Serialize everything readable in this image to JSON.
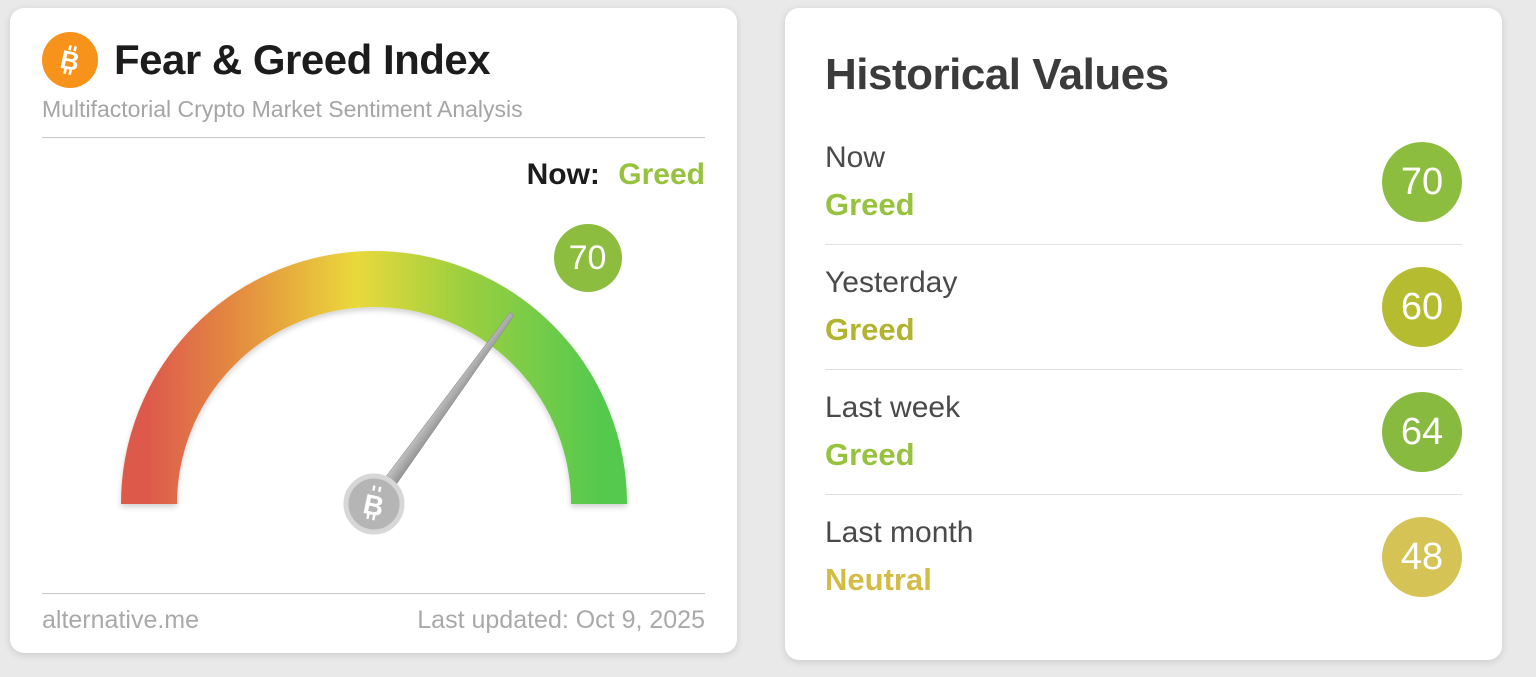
{
  "page": {
    "background": "#e9e9e9"
  },
  "index_card": {
    "title": "Fear & Greed Index",
    "subtitle": "Multifactorial Crypto Market Sentiment Analysis",
    "bitcoin_icon_color": "#f7931a",
    "now_label": "Now:",
    "now_classification": "Greed",
    "now_classification_color": "#96c23d",
    "gauge_badge": {
      "value": "70",
      "color": "#8cbd3e"
    },
    "footer": {
      "source": "alternative.me",
      "last_updated": "Last updated: Oct 9, 2025"
    }
  },
  "historical_card": {
    "title": "Historical Values",
    "rows": [
      {
        "label": "Now",
        "classification": "Greed",
        "value": "70",
        "classification_color": "#96c23d",
        "badge_color": "#8cbd3e"
      },
      {
        "label": "Yesterday",
        "classification": "Greed",
        "value": "60",
        "classification_color": "#b2b32f",
        "badge_color": "#b5bc30"
      },
      {
        "label": "Last week",
        "classification": "Greed",
        "value": "64",
        "classification_color": "#96c23d",
        "badge_color": "#87ba3f"
      },
      {
        "label": "Last month",
        "classification": "Neutral",
        "value": "48",
        "classification_color": "#d3bc45",
        "badge_color": "#d6c355"
      }
    ]
  },
  "chart_data": {
    "type": "gauge",
    "title": "Fear & Greed Index",
    "value": 70,
    "min": 0,
    "max": 100,
    "classification": "Greed",
    "scale_colors": [
      "#dd5a4c",
      "#e5923f",
      "#ead93b",
      "#9ccf3f",
      "#55c94e"
    ],
    "historical": [
      {
        "label": "Now",
        "classification": "Greed",
        "value": 70
      },
      {
        "label": "Yesterday",
        "classification": "Greed",
        "value": 60
      },
      {
        "label": "Last week",
        "classification": "Greed",
        "value": 64
      },
      {
        "label": "Last month",
        "classification": "Neutral",
        "value": 48
      }
    ]
  }
}
